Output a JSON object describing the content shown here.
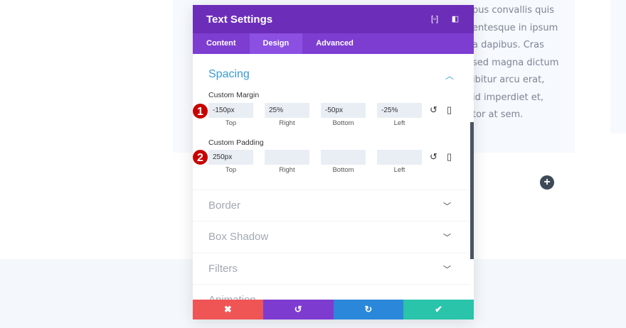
{
  "background_text": [
    "pus convallis quis",
    "entesque in ipsum",
    "a dapibus. Cras",
    "sed magna dictum",
    "ibitur arcu erat,",
    "id imperdiet et,",
    "tor at sem."
  ],
  "modal": {
    "title": "Text Settings",
    "tabs": [
      {
        "label": "Content"
      },
      {
        "label": "Design",
        "active": true
      },
      {
        "label": "Advanced"
      }
    ],
    "spacing": {
      "title": "Spacing",
      "margin": {
        "label": "Custom Margin",
        "badge": "1",
        "values": [
          "-150px",
          "25%",
          "-50px",
          "-25%"
        ]
      },
      "padding": {
        "label": "Custom Padding",
        "badge": "2",
        "values": [
          "250px",
          "",
          "",
          ""
        ]
      },
      "sides": [
        "Top",
        "Right",
        "Bottom",
        "Left"
      ]
    },
    "sections": [
      "Border",
      "Box Shadow",
      "Filters",
      "Animation"
    ],
    "footer": {
      "colors": [
        "#ef5555",
        "#7e3bd0",
        "#2b87da",
        "#29c4a9"
      ]
    }
  }
}
